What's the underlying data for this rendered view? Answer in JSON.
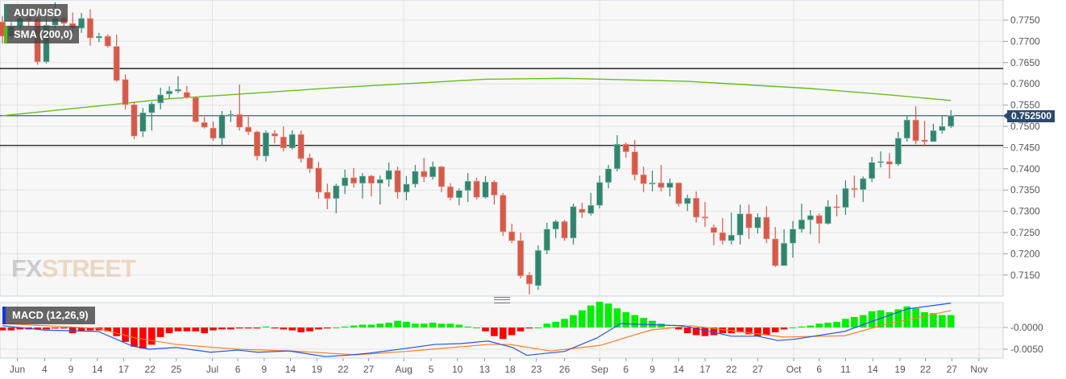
{
  "legend": {
    "symbol": "AUD/USD",
    "sma": "SMA (200,0)",
    "macd": "MACD (12,26,9)"
  },
  "watermark": {
    "part1": "FX",
    "part2": "STREET"
  },
  "current_price_label": "0.752500",
  "colors": {
    "up": "#318570",
    "down": "#d65a4a",
    "sma": "#66bb22",
    "macd": "#2255ee",
    "signal": "#ff7f27",
    "hist_up": "#00ee00",
    "hist_down": "#ff0000",
    "price_tag": "#2c4a6e"
  },
  "chart_data": [
    {
      "type": "candlestick",
      "title": "AUD/USD",
      "ylim": [
        0.7105,
        0.7795
      ],
      "yticks": [
        "0.7750",
        "0.7700",
        "0.7650",
        "0.7600",
        "0.7550",
        "0.7500",
        "0.7450",
        "0.7400",
        "0.7350",
        "0.7300",
        "0.7250",
        "0.7200",
        "0.7150"
      ],
      "current_price": 0.7525,
      "horizontal_lines": [
        0.7636,
        0.7455
      ],
      "candles_ohlc": [
        [
          0.7746,
          0.776,
          0.7695,
          0.7712
        ],
        [
          0.7712,
          0.7745,
          0.7705,
          0.7735
        ],
        [
          0.7735,
          0.7762,
          0.773,
          0.7754
        ],
        [
          0.7755,
          0.7762,
          0.7735,
          0.775
        ],
        [
          0.7754,
          0.776,
          0.7645,
          0.7652
        ],
        [
          0.7652,
          0.7757,
          0.7648,
          0.7738
        ],
        [
          0.7738,
          0.7792,
          0.773,
          0.7754
        ],
        [
          0.7754,
          0.776,
          0.7735,
          0.7742
        ],
        [
          0.7742,
          0.7768,
          0.772,
          0.7731
        ],
        [
          0.7731,
          0.7767,
          0.772,
          0.7754
        ],
        [
          0.7754,
          0.7775,
          0.769,
          0.7708
        ],
        [
          0.7708,
          0.772,
          0.7698,
          0.7712
        ],
        [
          0.7712,
          0.7717,
          0.7685,
          0.7689
        ],
        [
          0.7688,
          0.7716,
          0.7605,
          0.7608
        ],
        [
          0.761,
          0.7622,
          0.754,
          0.7551
        ],
        [
          0.7551,
          0.7558,
          0.747,
          0.7477
        ],
        [
          0.7488,
          0.7543,
          0.7475,
          0.7532
        ],
        [
          0.7532,
          0.7557,
          0.749,
          0.7553
        ],
        [
          0.7555,
          0.7591,
          0.754,
          0.7574
        ],
        [
          0.7576,
          0.7594,
          0.7565,
          0.7583
        ],
        [
          0.7583,
          0.7618,
          0.7578,
          0.7587
        ],
        [
          0.758,
          0.7595,
          0.7565,
          0.7568
        ],
        [
          0.7568,
          0.757,
          0.7509,
          0.7511
        ],
        [
          0.7509,
          0.7522,
          0.7495,
          0.7498
        ],
        [
          0.7496,
          0.7511,
          0.7466,
          0.7472
        ],
        [
          0.7472,
          0.7536,
          0.7455,
          0.7527
        ],
        [
          0.7525,
          0.7537,
          0.751,
          0.7528
        ],
        [
          0.7528,
          0.7598,
          0.749,
          0.7498
        ],
        [
          0.7498,
          0.7526,
          0.748,
          0.7487
        ],
        [
          0.7487,
          0.749,
          0.742,
          0.743
        ],
        [
          0.743,
          0.749,
          0.7417,
          0.7485
        ],
        [
          0.7483,
          0.7491,
          0.746,
          0.7477
        ],
        [
          0.7475,
          0.75,
          0.7441,
          0.7449
        ],
        [
          0.7449,
          0.7491,
          0.7445,
          0.7481
        ],
        [
          0.7481,
          0.749,
          0.7415,
          0.7424
        ],
        [
          0.7426,
          0.7436,
          0.739,
          0.74
        ],
        [
          0.7402,
          0.7416,
          0.733,
          0.7345
        ],
        [
          0.7345,
          0.7365,
          0.7305,
          0.733
        ],
        [
          0.733,
          0.7365,
          0.7295,
          0.736
        ],
        [
          0.736,
          0.7398,
          0.7341,
          0.7379
        ],
        [
          0.7379,
          0.7402,
          0.7356,
          0.7366
        ],
        [
          0.7366,
          0.739,
          0.733,
          0.7383
        ],
        [
          0.7383,
          0.7386,
          0.7335,
          0.7366
        ],
        [
          0.7366,
          0.7384,
          0.7316,
          0.7375
        ],
        [
          0.7375,
          0.7415,
          0.7358,
          0.7396
        ],
        [
          0.7396,
          0.7405,
          0.733,
          0.7345
        ],
        [
          0.7345,
          0.7383,
          0.7326,
          0.7364
        ],
        [
          0.7364,
          0.7409,
          0.7356,
          0.7394
        ],
        [
          0.7394,
          0.7426,
          0.7369,
          0.7381
        ],
        [
          0.7381,
          0.7417,
          0.7375,
          0.7405
        ],
        [
          0.7405,
          0.7407,
          0.7345,
          0.7358
        ],
        [
          0.7358,
          0.7366,
          0.7326,
          0.7332
        ],
        [
          0.7332,
          0.7354,
          0.7314,
          0.7349
        ],
        [
          0.7349,
          0.739,
          0.7322,
          0.7371
        ],
        [
          0.7371,
          0.7379,
          0.7328,
          0.7333
        ],
        [
          0.7333,
          0.7383,
          0.733,
          0.7369
        ],
        [
          0.7369,
          0.7373,
          0.7316,
          0.7338
        ],
        [
          0.7338,
          0.7343,
          0.7242,
          0.7252
        ],
        [
          0.7252,
          0.7271,
          0.7225,
          0.7231
        ],
        [
          0.7231,
          0.725,
          0.7142,
          0.7148
        ],
        [
          0.715,
          0.7157,
          0.7104,
          0.7129
        ],
        [
          0.7125,
          0.722,
          0.7115,
          0.7208
        ],
        [
          0.7208,
          0.7273,
          0.7199,
          0.7258
        ],
        [
          0.7258,
          0.728,
          0.7237,
          0.7276
        ],
        [
          0.7276,
          0.728,
          0.7231,
          0.7237
        ],
        [
          0.7237,
          0.7318,
          0.7222,
          0.7311
        ],
        [
          0.7305,
          0.732,
          0.7284,
          0.7297
        ],
        [
          0.7295,
          0.7343,
          0.729,
          0.7314
        ],
        [
          0.7314,
          0.7384,
          0.7307,
          0.7368
        ],
        [
          0.7368,
          0.7409,
          0.7354,
          0.74
        ],
        [
          0.74,
          0.7479,
          0.7394,
          0.7458
        ],
        [
          0.7458,
          0.7462,
          0.7426,
          0.744
        ],
        [
          0.744,
          0.7468,
          0.7373,
          0.7386
        ],
        [
          0.7386,
          0.7405,
          0.7345,
          0.7365
        ],
        [
          0.7365,
          0.7396,
          0.7347,
          0.7367
        ],
        [
          0.7367,
          0.7409,
          0.7347,
          0.7356
        ],
        [
          0.7356,
          0.7377,
          0.7335,
          0.7367
        ],
        [
          0.7367,
          0.7367,
          0.7311,
          0.7318
        ],
        [
          0.7318,
          0.7339,
          0.7301,
          0.7331
        ],
        [
          0.7331,
          0.7347,
          0.7273,
          0.7286
        ],
        [
          0.7287,
          0.7322,
          0.7263,
          0.7284
        ],
        [
          0.7262,
          0.7269,
          0.722,
          0.725
        ],
        [
          0.725,
          0.7284,
          0.7222,
          0.7231
        ],
        [
          0.7231,
          0.7297,
          0.7222,
          0.7244
        ],
        [
          0.7244,
          0.7316,
          0.7222,
          0.7294
        ],
        [
          0.7294,
          0.7316,
          0.7235,
          0.7261
        ],
        [
          0.7261,
          0.7295,
          0.7248,
          0.7286
        ],
        [
          0.7286,
          0.7312,
          0.7225,
          0.7235
        ],
        [
          0.7235,
          0.7263,
          0.7169,
          0.7172
        ],
        [
          0.7172,
          0.7258,
          0.7172,
          0.7225
        ],
        [
          0.7225,
          0.7277,
          0.7191,
          0.7258
        ],
        [
          0.7258,
          0.7318,
          0.725,
          0.728
        ],
        [
          0.728,
          0.7303,
          0.7246,
          0.729
        ],
        [
          0.729,
          0.7295,
          0.7225,
          0.7271
        ],
        [
          0.7271,
          0.7326,
          0.7269,
          0.7311
        ],
        [
          0.7311,
          0.7339,
          0.7288,
          0.7309
        ],
        [
          0.7309,
          0.7373,
          0.7292,
          0.7354
        ],
        [
          0.7354,
          0.7384,
          0.7332,
          0.7351
        ],
        [
          0.7351,
          0.7382,
          0.7322,
          0.7377
        ],
        [
          0.7377,
          0.7428,
          0.7369,
          0.7415
        ],
        [
          0.7415,
          0.7441,
          0.7403,
          0.7417
        ],
        [
          0.7417,
          0.7437,
          0.7377,
          0.7411
        ],
        [
          0.7411,
          0.7487,
          0.7407,
          0.7472
        ],
        [
          0.7472,
          0.7525,
          0.7464,
          0.7515
        ],
        [
          0.7515,
          0.7547,
          0.7458,
          0.7466
        ],
        [
          0.7468,
          0.7513,
          0.7453,
          0.7464
        ],
        [
          0.7464,
          0.7506,
          0.7464,
          0.749
        ],
        [
          0.749,
          0.7526,
          0.7483,
          0.75
        ],
        [
          0.75,
          0.7538,
          0.7496,
          0.7525
        ]
      ],
      "sma_200": [
        [
          0,
          0.7525
        ],
        [
          19,
          0.7565
        ],
        [
          38,
          0.7591
        ],
        [
          55,
          0.7611
        ],
        [
          64,
          0.7613
        ],
        [
          78,
          0.7606
        ],
        [
          92,
          0.7589
        ],
        [
          101,
          0.7574
        ],
        [
          108,
          0.7561
        ]
      ]
    },
    {
      "type": "macd",
      "title": "MACD (12,26,9)",
      "yticks": [
        "-0.0000",
        "-0.0050"
      ],
      "ylim": [
        -0.0072,
        0.0062
      ],
      "macd": [
        [
          0,
          0.0004
        ],
        [
          4.8,
          -0.0006
        ],
        [
          10.9,
          -0.0009
        ],
        [
          14.8,
          -0.0043
        ],
        [
          16.7,
          -0.005
        ],
        [
          19.8,
          -0.0046
        ],
        [
          23.7,
          -0.0057
        ],
        [
          26.8,
          -0.0052
        ],
        [
          29.1,
          -0.0057
        ],
        [
          32.6,
          -0.0054
        ],
        [
          36.8,
          -0.0067
        ],
        [
          39.1,
          -0.0064
        ],
        [
          41.8,
          -0.0059
        ],
        [
          46,
          -0.0048
        ],
        [
          49.2,
          -0.0039
        ],
        [
          52.2,
          -0.0037
        ],
        [
          55.3,
          -0.0031
        ],
        [
          58.1,
          -0.0046
        ],
        [
          59.7,
          -0.0064
        ],
        [
          64,
          -0.0055
        ],
        [
          67.7,
          -0.0024
        ],
        [
          70.4,
          0.0009
        ],
        [
          77.6,
          0.0004
        ],
        [
          83,
          -0.002
        ],
        [
          86,
          -0.002
        ],
        [
          88.3,
          -0.003
        ],
        [
          90.2,
          -0.0027
        ],
        [
          95.9,
          -0.0009
        ],
        [
          99.7,
          0.0019
        ],
        [
          103.1,
          0.0043
        ],
        [
          108,
          0.0056
        ]
      ],
      "signal": [
        [
          0,
          0.0009
        ],
        [
          10.9,
          -0.0002
        ],
        [
          15.1,
          -0.0024
        ],
        [
          19.8,
          -0.0039
        ],
        [
          26.8,
          -0.005
        ],
        [
          32.9,
          -0.0054
        ],
        [
          40.3,
          -0.0063
        ],
        [
          46,
          -0.0055
        ],
        [
          55.3,
          -0.0039
        ],
        [
          57.8,
          -0.0039
        ],
        [
          62.4,
          -0.0054
        ],
        [
          68.1,
          -0.0041
        ],
        [
          73.8,
          -0.0006
        ],
        [
          78.4,
          0.0004
        ],
        [
          89,
          -0.0022
        ],
        [
          95.9,
          -0.0019
        ],
        [
          100.5,
          0.0007
        ],
        [
          108,
          0.0039
        ]
      ],
      "histogram": [
        -0.0003,
        -0.0003,
        -0.0002,
        -0.0002,
        -0.0002,
        -0.0002,
        -0.0001,
        -0.0001,
        -0.0006,
        -0.0004,
        -0.0003,
        -0.0003,
        -0.0004,
        -0.0009,
        -0.0015,
        -0.002,
        -0.0022,
        -0.0018,
        -0.001,
        -0.0006,
        -0.0004,
        -0.0004,
        -0.0004,
        -0.0006,
        -0.0003,
        -0.0002,
        -0.0002,
        -0.0001,
        -0.0001,
        -0.0001,
        0.0001,
        -0.0001,
        -0.0002,
        -0.0003,
        -0.0005,
        -0.0004,
        -0.0002,
        -0.0001,
        0,
        0.0001,
        0.0002,
        0.0003,
        0.0003,
        0.0004,
        0.0005,
        0.0007,
        0.0006,
        0.0004,
        0.0004,
        0.0005,
        0.0004,
        0.0004,
        0.0003,
        0.0001,
        0,
        -0.0004,
        -0.0009,
        -0.0012,
        -0.0008,
        -0.0004,
        -0.0001,
        0,
        0.0004,
        0.0006,
        0.0009,
        0.0013,
        0.0018,
        0.0023,
        0.0027,
        0.0025,
        0.002,
        0.0016,
        0.0013,
        0.001,
        0.0007,
        0.0004,
        0,
        -0.0002,
        -0.0006,
        -0.0008,
        -0.0009,
        -0.0008,
        -0.0006,
        -0.0006,
        -0.0005,
        -0.0007,
        -0.0009,
        -0.0008,
        -0.0005,
        -0.0002,
        0,
        0.0001,
        0.0002,
        0.0004,
        0.0005,
        0.0006,
        0.0009,
        0.0011,
        0.0013,
        0.0017,
        0.0018,
        0.0016,
        0.0019,
        0.0022,
        0.002,
        0.0016,
        0.0015,
        0.0013,
        0.0013
      ]
    }
  ],
  "x_axis": {
    "ticks": [
      [
        "Jun",
        1.7
      ],
      [
        "4",
        4.8
      ],
      [
        "9",
        7.8
      ],
      [
        "14",
        10.8
      ],
      [
        "17",
        13.8
      ],
      [
        "22",
        16.8
      ],
      [
        "25",
        19.8
      ],
      [
        "Jul",
        23.9
      ],
      [
        "6",
        26.8
      ],
      [
        "9",
        29.8
      ],
      [
        "14",
        32.8
      ],
      [
        "19",
        35.8
      ],
      [
        "22",
        38.8
      ],
      [
        "27",
        41.7
      ],
      [
        "Aug",
        45.7
      ],
      [
        "5",
        48.8
      ],
      [
        "10",
        51.8
      ],
      [
        "13",
        54.9
      ],
      [
        "18",
        57.8
      ],
      [
        "23",
        60.8
      ],
      [
        "26",
        64
      ],
      [
        "Sep",
        68
      ],
      [
        "6",
        71
      ],
      [
        "9",
        74
      ],
      [
        "14",
        77
      ],
      [
        "17",
        80
      ],
      [
        "22",
        83
      ],
      [
        "27",
        86
      ],
      [
        "Oct",
        90.1
      ],
      [
        "6",
        93
      ],
      [
        "11",
        96
      ],
      [
        "14",
        99.1
      ],
      [
        "19",
        102.2
      ],
      [
        "22",
        105.1
      ],
      [
        "27",
        108.1
      ],
      [
        "Nov",
        111.2
      ]
    ],
    "month_ticks": [
      "Jun",
      "Jul",
      "Aug",
      "Sep",
      "Oct",
      "Nov"
    ]
  }
}
